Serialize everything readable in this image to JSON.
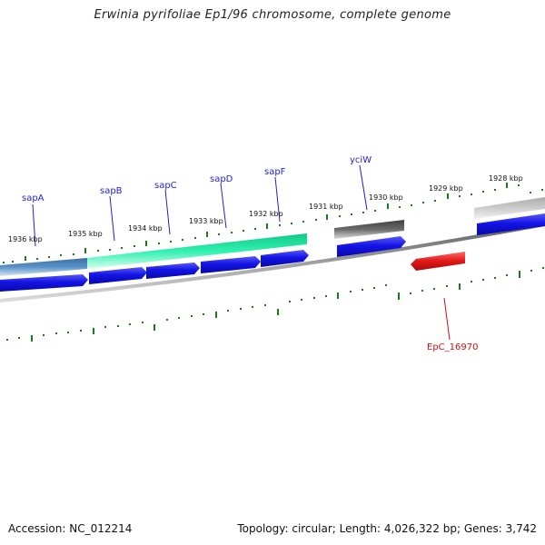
{
  "header": {
    "title": "Erwinia pyrifoliae Ep1/96 chromosome, complete genome"
  },
  "footer": {
    "accession_label": "Accession: NC_012214",
    "stats_label": "Topology: circular; Length: 4,026,322 bp; Genes: 3,742"
  },
  "scale_labels": [
    "1936 kbp",
    "1935 kbp",
    "1934 kbp",
    "1933 kbp",
    "1932 kbp",
    "1931 kbp",
    "1930 kbp",
    "1929 kbp",
    "1928 kbp"
  ],
  "gene_labels": [
    "sapA",
    "sapB",
    "sapC",
    "sapD",
    "sapF",
    "yciW"
  ],
  "feature_labels": [
    "EpC_16970"
  ],
  "colors": {
    "gene_blue": "#1414e6",
    "feature_red": "#e01818",
    "label_blue": "#1f1fd6",
    "label_red": "#d01010",
    "tick_green": "#1a7a1a",
    "backbone": "#808080",
    "band_steel": "#4f88c2",
    "band_green": "#23e4a0",
    "band_dark": "#555555",
    "band_light": "#bfbfbf"
  }
}
